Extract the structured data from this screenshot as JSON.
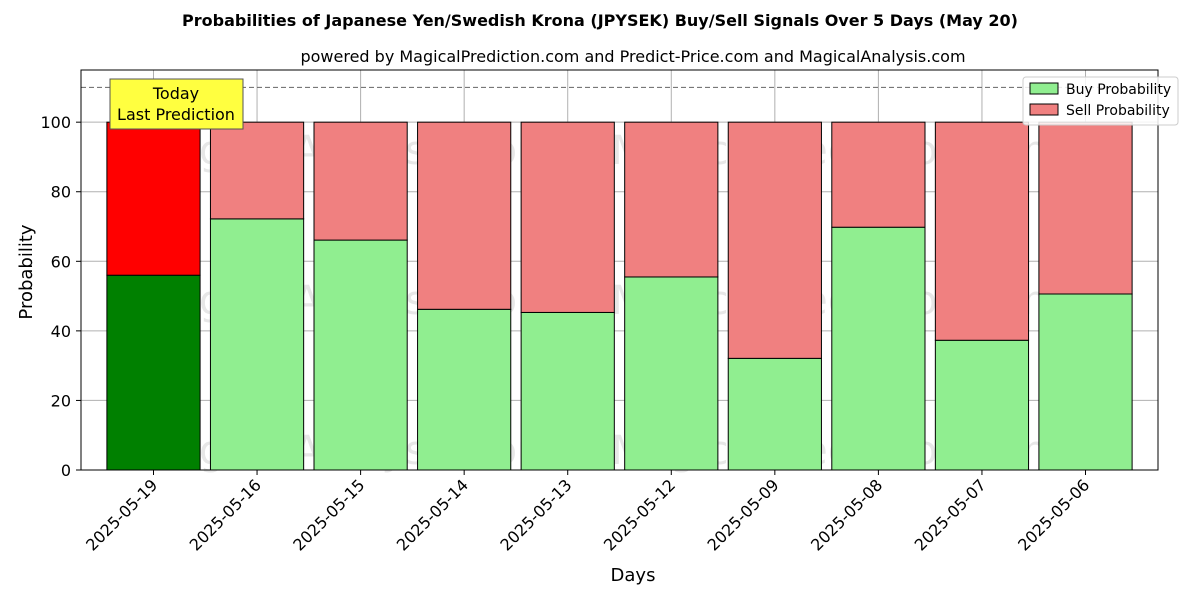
{
  "chart_data": {
    "type": "bar",
    "title": "Probabilities of Japanese Yen/Swedish Krona (JPYSEK) Buy/Sell Signals Over 5 Days (May 20)",
    "subtitle": "powered by MagicalPrediction.com and Predict-Price.com and MagicalAnalysis.com",
    "xlabel": "Days",
    "ylabel": "Probability",
    "ylim": [
      0,
      115
    ],
    "yticks": [
      0,
      20,
      40,
      60,
      80,
      100
    ],
    "categories": [
      "2025-05-19",
      "2025-05-16",
      "2025-05-15",
      "2025-05-14",
      "2025-05-13",
      "2025-05-12",
      "2025-05-09",
      "2025-05-08",
      "2025-05-07",
      "2025-05-06"
    ],
    "stacked": true,
    "series": [
      {
        "name": "Buy Probability",
        "values": [
          56,
          72.2,
          66.1,
          46.2,
          45.3,
          55.5,
          32.1,
          69.8,
          37.3,
          50.6
        ]
      },
      {
        "name": "Sell Probability",
        "values": [
          44,
          27.8,
          33.9,
          53.8,
          54.7,
          44.5,
          67.9,
          30.2,
          62.7,
          49.4
        ]
      }
    ],
    "colors": {
      "buy": "#90ee90",
      "sell": "#f08080",
      "buy_highlight": "#008000",
      "sell_highlight": "#ff0000",
      "annotation_bg": "#ffff40"
    },
    "highlight_index": 0,
    "reference_line": 110,
    "annotation": {
      "line1": "Today",
      "line2": "Last Prediction"
    },
    "legend_position": "top-right",
    "grid": true,
    "watermarks": [
      "MagicalAnalysis.com",
      "MagicalPrediction.com"
    ]
  }
}
